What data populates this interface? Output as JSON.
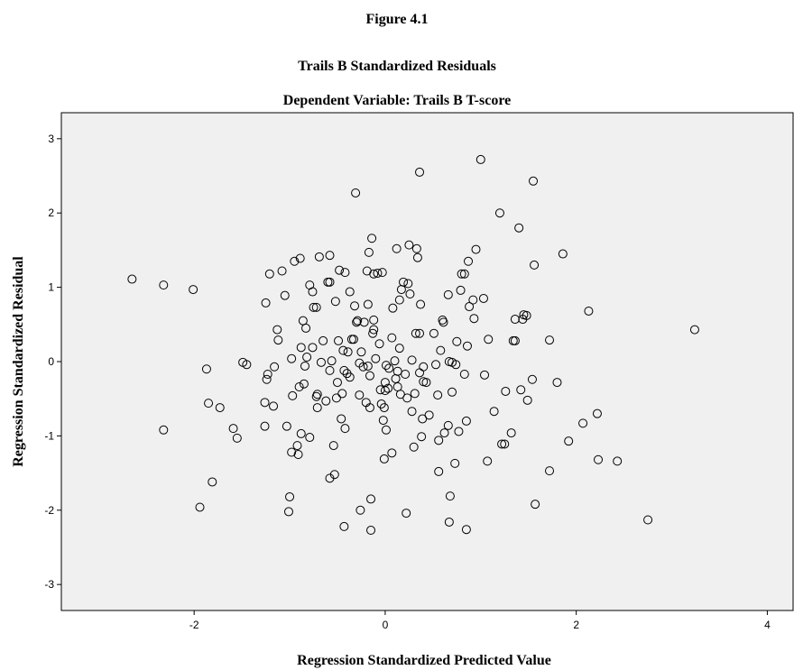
{
  "chart_data": {
    "type": "scatter",
    "title": "Figure 4.1",
    "subtitle": [
      "Trails B Standardized Residuals",
      "Dependent Variable: Trails B T-score"
    ],
    "xlabel": "Regression Standardized Predicted Value",
    "ylabel": "Regression Standardized Residual",
    "xlim": [
      -3.39,
      4.27
    ],
    "ylim": [
      -3.35,
      3.35
    ],
    "xticks": [
      -2,
      0,
      2,
      4
    ],
    "yticks": [
      -3,
      -2,
      -1,
      0,
      1,
      2,
      3
    ],
    "color": "#000000",
    "background": "#f0f0f0",
    "x": [
      -2.65,
      -2.32,
      -2.01,
      -2.32,
      -1.94,
      -1.87,
      -1.85,
      -1.81,
      -1.73,
      -1.59,
      -1.55,
      -1.49,
      -1.45,
      -1.26,
      -1.26,
      -1.25,
      -1.24,
      -1.23,
      -1.21,
      -1.17,
      -1.16,
      -1.13,
      -1.12,
      -1.08,
      -1.05,
      -1.03,
      -1.01,
      -1.0,
      -0.98,
      -0.98,
      -0.97,
      -0.95,
      -0.92,
      -0.91,
      -0.9,
      -0.89,
      -0.88,
      -0.88,
      -0.86,
      -0.85,
      -0.83,
      -0.82,
      -0.84,
      -0.79,
      -0.79,
      -0.76,
      -0.76,
      -0.75,
      -0.72,
      -0.72,
      -0.71,
      -0.71,
      -0.69,
      -0.67,
      -0.65,
      -0.62,
      -0.6,
      -0.58,
      -0.58,
      -0.58,
      -0.58,
      -0.56,
      -0.54,
      -0.53,
      -0.52,
      -0.51,
      -0.5,
      -0.49,
      -0.48,
      -0.46,
      -0.45,
      -0.44,
      -0.43,
      -0.42,
      -0.42,
      -0.43,
      -0.4,
      -0.39,
      -0.37,
      -0.37,
      -0.35,
      -0.33,
      -0.32,
      -0.31,
      -0.3,
      -0.29,
      -0.27,
      -0.27,
      -0.26,
      -0.25,
      -0.23,
      -0.22,
      -0.2,
      -0.18,
      -0.18,
      -0.19,
      -0.17,
      -0.16,
      -0.16,
      -0.15,
      -0.15,
      -0.14,
      -0.13,
      -0.12,
      -0.12,
      -0.12,
      -0.1,
      -0.08,
      -0.06,
      -0.05,
      -0.04,
      -0.03,
      -0.02,
      -0.01,
      0.01,
      0.0,
      0.0,
      0.01,
      -0.01,
      0.03,
      0.04,
      0.07,
      0.07,
      0.08,
      0.1,
      0.11,
      0.12,
      0.13,
      0.13,
      0.15,
      0.15,
      0.16,
      0.17,
      0.19,
      0.21,
      0.22,
      0.23,
      0.24,
      0.25,
      0.26,
      0.28,
      0.28,
      0.3,
      0.31,
      0.32,
      0.33,
      0.34,
      0.36,
      0.36,
      0.36,
      0.37,
      0.38,
      0.39,
      0.4,
      0.4,
      0.43,
      0.46,
      0.51,
      0.53,
      0.55,
      0.56,
      0.56,
      0.58,
      0.6,
      0.61,
      0.62,
      0.66,
      0.66,
      0.67,
      0.68,
      0.67,
      0.7,
      0.7,
      0.73,
      0.74,
      0.77,
      0.75,
      0.79,
      0.8,
      0.83,
      0.83,
      0.85,
      0.86,
      0.85,
      0.87,
      0.88,
      0.92,
      0.93,
      0.95,
      1.0,
      1.03,
      1.04,
      1.07,
      1.08,
      1.14,
      1.2,
      1.22,
      1.25,
      1.26,
      1.32,
      1.34,
      1.36,
      1.36,
      1.4,
      1.42,
      1.44,
      1.45,
      1.48,
      1.49,
      1.55,
      1.54,
      1.56,
      1.57,
      1.72,
      1.72,
      1.8,
      1.86,
      1.92,
      2.07,
      2.13,
      2.22,
      2.23,
      2.43,
      2.75,
      3.24
    ],
    "values": [
      1.11,
      1.03,
      0.97,
      -0.92,
      -1.96,
      -0.1,
      -0.56,
      -1.62,
      -0.62,
      -0.9,
      -1.03,
      -0.01,
      -0.04,
      -0.87,
      -0.55,
      0.79,
      -0.24,
      -0.17,
      1.18,
      -0.6,
      -0.07,
      0.43,
      0.29,
      1.22,
      0.89,
      -0.87,
      -2.02,
      -1.82,
      -1.22,
      0.04,
      -0.46,
      1.35,
      -1.13,
      -1.25,
      -0.34,
      1.39,
      0.19,
      -0.97,
      0.55,
      -0.3,
      0.45,
      0.06,
      -0.06,
      -1.02,
      1.03,
      0.94,
      0.19,
      0.73,
      0.73,
      -0.47,
      -0.62,
      -0.44,
      1.41,
      -0.01,
      0.28,
      -0.53,
      1.07,
      1.07,
      -1.57,
      -0.12,
      1.43,
      0.01,
      -1.13,
      -1.52,
      0.81,
      -0.49,
      -0.28,
      0.28,
      1.23,
      -0.77,
      -0.43,
      0.15,
      -0.12,
      -0.9,
      1.2,
      -2.22,
      -0.16,
      0.13,
      0.94,
      -0.21,
      0.3,
      0.3,
      0.75,
      2.27,
      0.53,
      0.55,
      -0.02,
      -0.45,
      -2.0,
      0.13,
      -0.07,
      0.53,
      -0.55,
      -0.06,
      0.77,
      1.22,
      1.47,
      -0.62,
      -0.19,
      -2.27,
      -1.85,
      1.66,
      0.38,
      0.43,
      0.56,
      1.18,
      0.04,
      1.19,
      0.24,
      -0.38,
      -0.57,
      1.2,
      -0.79,
      -0.62,
      -0.05,
      -0.28,
      -0.39,
      -0.92,
      -1.31,
      -0.36,
      -0.09,
      -1.23,
      0.32,
      0.72,
      0.01,
      -0.23,
      1.52,
      -0.34,
      -0.13,
      0.18,
      0.83,
      -0.44,
      0.97,
      1.07,
      -0.17,
      -2.04,
      -0.49,
      1.05,
      1.57,
      0.91,
      -0.67,
      0.02,
      -1.15,
      -0.43,
      0.38,
      1.52,
      1.4,
      -0.15,
      2.55,
      0.38,
      0.77,
      -1.01,
      -0.77,
      -0.07,
      -0.27,
      -0.28,
      -0.72,
      0.38,
      -0.04,
      -0.45,
      -1.06,
      -1.48,
      0.15,
      0.56,
      0.53,
      -0.96,
      -0.86,
      0.9,
      0.0,
      -1.81,
      -2.16,
      -0.01,
      -0.41,
      -1.37,
      -0.04,
      -0.94,
      0.27,
      0.96,
      1.18,
      1.18,
      -0.17,
      -2.26,
      0.21,
      -0.8,
      1.35,
      0.74,
      0.83,
      0.58,
      1.51,
      2.72,
      0.85,
      -0.18,
      -1.34,
      0.3,
      -0.67,
      2.0,
      -1.11,
      -1.11,
      -0.4,
      -0.96,
      0.28,
      0.28,
      0.57,
      1.8,
      -0.38,
      0.57,
      0.63,
      0.62,
      -0.52,
      2.43,
      -0.24,
      1.3,
      -1.92,
      0.29,
      -1.47,
      -0.28,
      1.45,
      -1.07,
      -0.83,
      0.68,
      -0.7,
      -1.32,
      -1.34,
      -2.13,
      0.43
    ]
  }
}
